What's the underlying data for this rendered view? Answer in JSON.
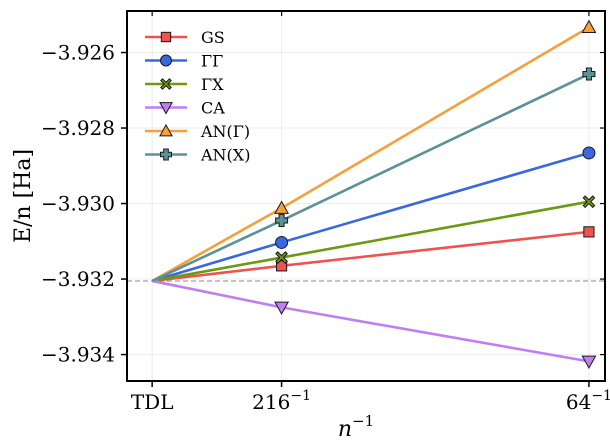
{
  "chart_data": {
    "type": "line",
    "x_ticks": [
      {
        "value": 0,
        "label": "TDL"
      },
      {
        "value": 0.00463,
        "label": "216",
        "sup": "−1"
      },
      {
        "value": 0.015625,
        "label": "64",
        "sup": "−1"
      }
    ],
    "x": [
      0,
      0.00463,
      0.015625
    ],
    "xlim": [
      -0.0009,
      0.0162
    ],
    "ylim": [
      -3.9347,
      -3.9249
    ],
    "y_ticks": [
      {
        "value": -3.934,
        "label": "−3.934"
      },
      {
        "value": -3.932,
        "label": "−3.932"
      },
      {
        "value": -3.93,
        "label": "−3.930"
      },
      {
        "value": -3.928,
        "label": "−3.928"
      },
      {
        "value": -3.926,
        "label": "−3.926"
      }
    ],
    "xlabel": {
      "base": "n",
      "sup": "−1"
    },
    "ylabel": "E/n [Ha]",
    "reference_line": {
      "value": -3.93205,
      "style": "dashed"
    },
    "grid": true,
    "legend_position": "upper-left",
    "series": [
      {
        "name": "GS",
        "color": "#ef5350",
        "marker": "square",
        "values": [
          -3.93205,
          -3.93165,
          -3.93075
        ]
      },
      {
        "name": "ΓΓ",
        "color": "#3a67e0",
        "marker": "circle",
        "values": [
          -3.93205,
          -3.93103,
          -3.92866
        ]
      },
      {
        "name": "ΓX",
        "color": "#6b9a12",
        "marker": "x",
        "values": [
          -3.93205,
          -3.93143,
          -3.92995
        ]
      },
      {
        "name": "CA",
        "color": "#bf7ff0",
        "marker": "triangle-down",
        "values": [
          -3.93205,
          -3.93275,
          -3.93418
        ]
      },
      {
        "name": "AN(Γ)",
        "color": "#f7a03a",
        "marker": "triangle-up",
        "values": [
          -3.93205,
          -3.93012,
          -3.92533
        ]
      },
      {
        "name": "AN(X)",
        "color": "#5b9295",
        "marker": "plus",
        "values": [
          -3.93205,
          -3.93045,
          -3.92657
        ]
      }
    ]
  }
}
